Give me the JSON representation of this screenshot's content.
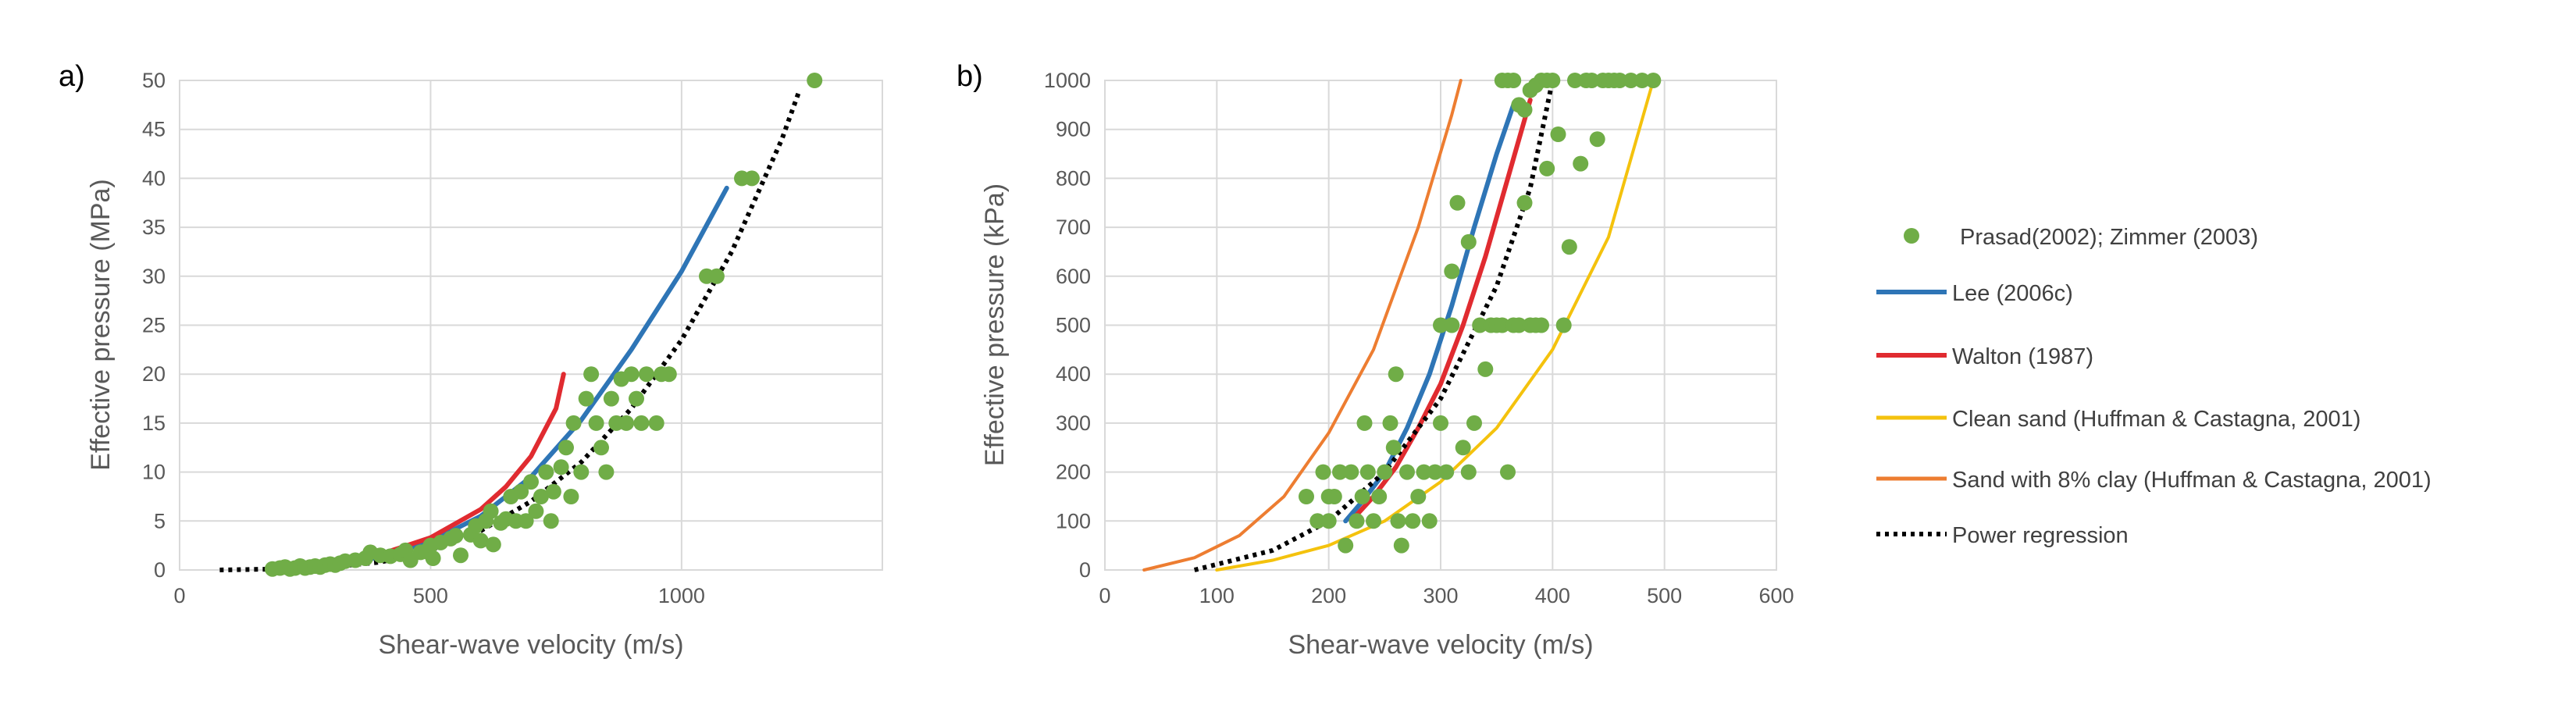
{
  "colors": {
    "points": "#70ad47",
    "lee": "#2e75b6",
    "walton": "#e02b30",
    "clean_sand": "#f4c20d",
    "clay_sand": "#ed7d31",
    "power": "#000000",
    "grid": "#d9d9d9",
    "text": "#595959"
  },
  "legend": [
    {
      "key": "points",
      "label": "Prasad(2002); Zimmer (2003)",
      "kind": "marker",
      "color": "#70ad47"
    },
    {
      "key": "lee",
      "label": "Lee (2006c)",
      "kind": "line",
      "color": "#2e75b6"
    },
    {
      "key": "walton",
      "label": "Walton (1987)",
      "kind": "line",
      "color": "#e02b30"
    },
    {
      "key": "clean_sand",
      "label": "Clean sand (Huffman & Castagna, 2001)",
      "kind": "line",
      "color": "#f4c20d"
    },
    {
      "key": "clay_sand",
      "label": "Sand with 8% clay (Huffman & Castagna, 2001)",
      "kind": "line",
      "color": "#ed7d31"
    },
    {
      "key": "power",
      "label": "Power regression",
      "kind": "dotted",
      "color": "#000000"
    }
  ],
  "chart_data": [
    {
      "type": "scatter",
      "panel_label": "a)",
      "xlabel": "Shear-wave velocity (m/s)",
      "ylabel": "Effective pressure (MPa)",
      "xlim": [
        0,
        1400
      ],
      "ylim": [
        0,
        50
      ],
      "xticks": [
        0,
        500,
        1000
      ],
      "yticks": [
        0,
        5,
        10,
        15,
        20,
        25,
        30,
        35,
        40,
        45,
        50
      ],
      "points": [
        [
          185,
          0.1
        ],
        [
          200,
          0.2
        ],
        [
          210,
          0.3
        ],
        [
          220,
          0.1
        ],
        [
          230,
          0.2
        ],
        [
          240,
          0.4
        ],
        [
          250,
          0.2
        ],
        [
          260,
          0.3
        ],
        [
          270,
          0.4
        ],
        [
          280,
          0.3
        ],
        [
          290,
          0.5
        ],
        [
          300,
          0.6
        ],
        [
          310,
          0.5
        ],
        [
          320,
          0.7
        ],
        [
          330,
          0.9
        ],
        [
          350,
          1.0
        ],
        [
          370,
          1.2
        ],
        [
          380,
          1.8
        ],
        [
          400,
          1.5
        ],
        [
          420,
          1.4
        ],
        [
          440,
          1.6
        ],
        [
          450,
          2.0
        ],
        [
          460,
          1.0
        ],
        [
          480,
          1.8
        ],
        [
          490,
          1.9
        ],
        [
          500,
          2.5
        ],
        [
          505,
          1.2
        ],
        [
          520,
          2.8
        ],
        [
          540,
          3.2
        ],
        [
          550,
          3.5
        ],
        [
          560,
          1.5
        ],
        [
          580,
          3.6
        ],
        [
          590,
          4.5
        ],
        [
          600,
          3.0
        ],
        [
          610,
          5.0
        ],
        [
          620,
          6.0
        ],
        [
          625,
          2.6
        ],
        [
          640,
          4.8
        ],
        [
          650,
          5.2
        ],
        [
          660,
          7.5
        ],
        [
          670,
          5.0
        ],
        [
          680,
          8.0
        ],
        [
          690,
          5.0
        ],
        [
          700,
          9.0
        ],
        [
          710,
          6.0
        ],
        [
          720,
          7.5
        ],
        [
          730,
          10.0
        ],
        [
          740,
          5.0
        ],
        [
          745,
          8.0
        ],
        [
          760,
          10.5
        ],
        [
          770,
          12.5
        ],
        [
          780,
          7.5
        ],
        [
          785,
          15.0
        ],
        [
          800,
          10.0
        ],
        [
          810,
          17.5
        ],
        [
          820,
          20.0
        ],
        [
          830,
          15.0
        ],
        [
          840,
          12.5
        ],
        [
          850,
          10.0
        ],
        [
          860,
          17.5
        ],
        [
          870,
          15.0
        ],
        [
          880,
          19.5
        ],
        [
          890,
          15.0
        ],
        [
          900,
          20.0
        ],
        [
          910,
          17.5
        ],
        [
          920,
          15.0
        ],
        [
          930,
          20.0
        ],
        [
          950,
          15.0
        ],
        [
          960,
          20.0
        ],
        [
          975,
          20.0
        ],
        [
          1050,
          30.0
        ],
        [
          1070,
          30.0
        ],
        [
          1120,
          40.0
        ],
        [
          1140,
          40.0
        ],
        [
          1265,
          50.0
        ]
      ],
      "series": [
        {
          "name": "Lee (2006c)",
          "key": "lee",
          "x": [
            200,
            300,
            400,
            500,
            600,
            700,
            800,
            900,
            1000,
            1090
          ],
          "y": [
            0.1,
            0.5,
            1.3,
            2.9,
            5.5,
            9.5,
            15.3,
            22.5,
            30.5,
            39.0
          ]
        },
        {
          "name": "Walton (1987)",
          "key": "walton",
          "x": [
            200,
            300,
            400,
            500,
            600,
            650,
            700,
            750,
            765
          ],
          "y": [
            0.2,
            0.7,
            1.6,
            3.3,
            6.2,
            8.5,
            11.6,
            16.5,
            20.0
          ]
        },
        {
          "name": "Power regression",
          "key": "power",
          "x": [
            80,
            200,
            300,
            400,
            500,
            600,
            700,
            800,
            900,
            1000,
            1100,
            1200,
            1235
          ],
          "y": [
            0.0,
            0.1,
            0.3,
            0.8,
            2.0,
            4.0,
            7.0,
            11.0,
            16.5,
            23.5,
            32.5,
            44.0,
            49.0
          ]
        }
      ]
    },
    {
      "type": "scatter",
      "panel_label": "b)",
      "xlabel": "Shear-wave velocity (m/s)",
      "ylabel": "Effective pressure (kPa)",
      "xlim": [
        0,
        600
      ],
      "ylim": [
        0,
        1000
      ],
      "xticks": [
        0,
        100,
        200,
        300,
        400,
        500,
        600
      ],
      "yticks": [
        0,
        100,
        200,
        300,
        400,
        500,
        600,
        700,
        800,
        900,
        1000
      ],
      "points": [
        [
          180,
          150
        ],
        [
          190,
          100
        ],
        [
          195,
          200
        ],
        [
          200,
          100
        ],
        [
          205,
          150
        ],
        [
          210,
          200
        ],
        [
          215,
          50
        ],
        [
          220,
          200
        ],
        [
          225,
          100
        ],
        [
          230,
          150
        ],
        [
          232,
          300
        ],
        [
          235,
          200
        ],
        [
          240,
          100
        ],
        [
          245,
          150
        ],
        [
          250,
          200
        ],
        [
          255,
          300
        ],
        [
          258,
          250
        ],
        [
          260,
          400
        ],
        [
          262,
          100
        ],
        [
          265,
          50
        ],
        [
          270,
          200
        ],
        [
          275,
          100
        ],
        [
          280,
          150
        ],
        [
          285,
          200
        ],
        [
          290,
          100
        ],
        [
          295,
          200
        ],
        [
          300,
          500
        ],
        [
          305,
          200
        ],
        [
          310,
          500
        ],
        [
          315,
          750
        ],
        [
          320,
          250
        ],
        [
          325,
          200
        ],
        [
          330,
          300
        ],
        [
          335,
          500
        ],
        [
          340,
          410
        ],
        [
          345,
          500
        ],
        [
          350,
          500
        ],
        [
          355,
          500
        ],
        [
          360,
          200
        ],
        [
          365,
          500
        ],
        [
          370,
          500
        ],
        [
          375,
          750
        ],
        [
          380,
          500
        ],
        [
          385,
          500
        ],
        [
          390,
          500
        ],
        [
          395,
          820
        ],
        [
          400,
          1000
        ],
        [
          405,
          890
        ],
        [
          410,
          500
        ],
        [
          415,
          660
        ],
        [
          420,
          1000
        ],
        [
          425,
          830
        ],
        [
          430,
          1000
        ],
        [
          435,
          1000
        ],
        [
          440,
          880
        ],
        [
          445,
          1000
        ],
        [
          450,
          1000
        ],
        [
          455,
          1000
        ],
        [
          460,
          1000
        ],
        [
          470,
          1000
        ],
        [
          480,
          1000
        ],
        [
          490,
          1000
        ],
        [
          360,
          1000
        ],
        [
          365,
          1000
        ],
        [
          370,
          950
        ],
        [
          375,
          940
        ],
        [
          380,
          980
        ],
        [
          385,
          990
        ],
        [
          390,
          1000
        ],
        [
          395,
          1000
        ],
        [
          355,
          1000
        ],
        [
          300,
          300
        ],
        [
          310,
          610
        ],
        [
          325,
          670
        ],
        [
          200,
          150
        ]
      ],
      "series": [
        {
          "name": "Lee (2006c)",
          "key": "lee",
          "x": [
            215,
            230,
            250,
            270,
            290,
            310,
            330,
            350,
            365
          ],
          "y": [
            100,
            140,
            200,
            290,
            400,
            540,
            700,
            850,
            950
          ]
        },
        {
          "name": "Walton (1987)",
          "key": "walton",
          "x": [
            220,
            240,
            260,
            280,
            300,
            320,
            340,
            360,
            380
          ],
          "y": [
            100,
            150,
            210,
            290,
            380,
            500,
            640,
            800,
            960
          ]
        },
        {
          "name": "Clean sand (Huffman & Castagna, 2001)",
          "key": "clean_sand",
          "x": [
            100,
            150,
            200,
            250,
            300,
            350,
            400,
            450,
            490
          ],
          "y": [
            0,
            20,
            50,
            100,
            180,
            290,
            450,
            680,
            1000
          ]
        },
        {
          "name": "Sand with 8% clay (Huffman & Castagna, 2001)",
          "key": "clay_sand",
          "x": [
            35,
            80,
            120,
            160,
            200,
            240,
            280,
            310,
            318
          ],
          "y": [
            0,
            25,
            70,
            150,
            280,
            450,
            700,
            930,
            1000
          ]
        },
        {
          "name": "Power regression",
          "key": "power",
          "x": [
            80,
            150,
            200,
            250,
            300,
            350,
            380,
            400
          ],
          "y": [
            0,
            40,
            100,
            200,
            350,
            580,
            780,
            1000
          ]
        }
      ]
    }
  ]
}
